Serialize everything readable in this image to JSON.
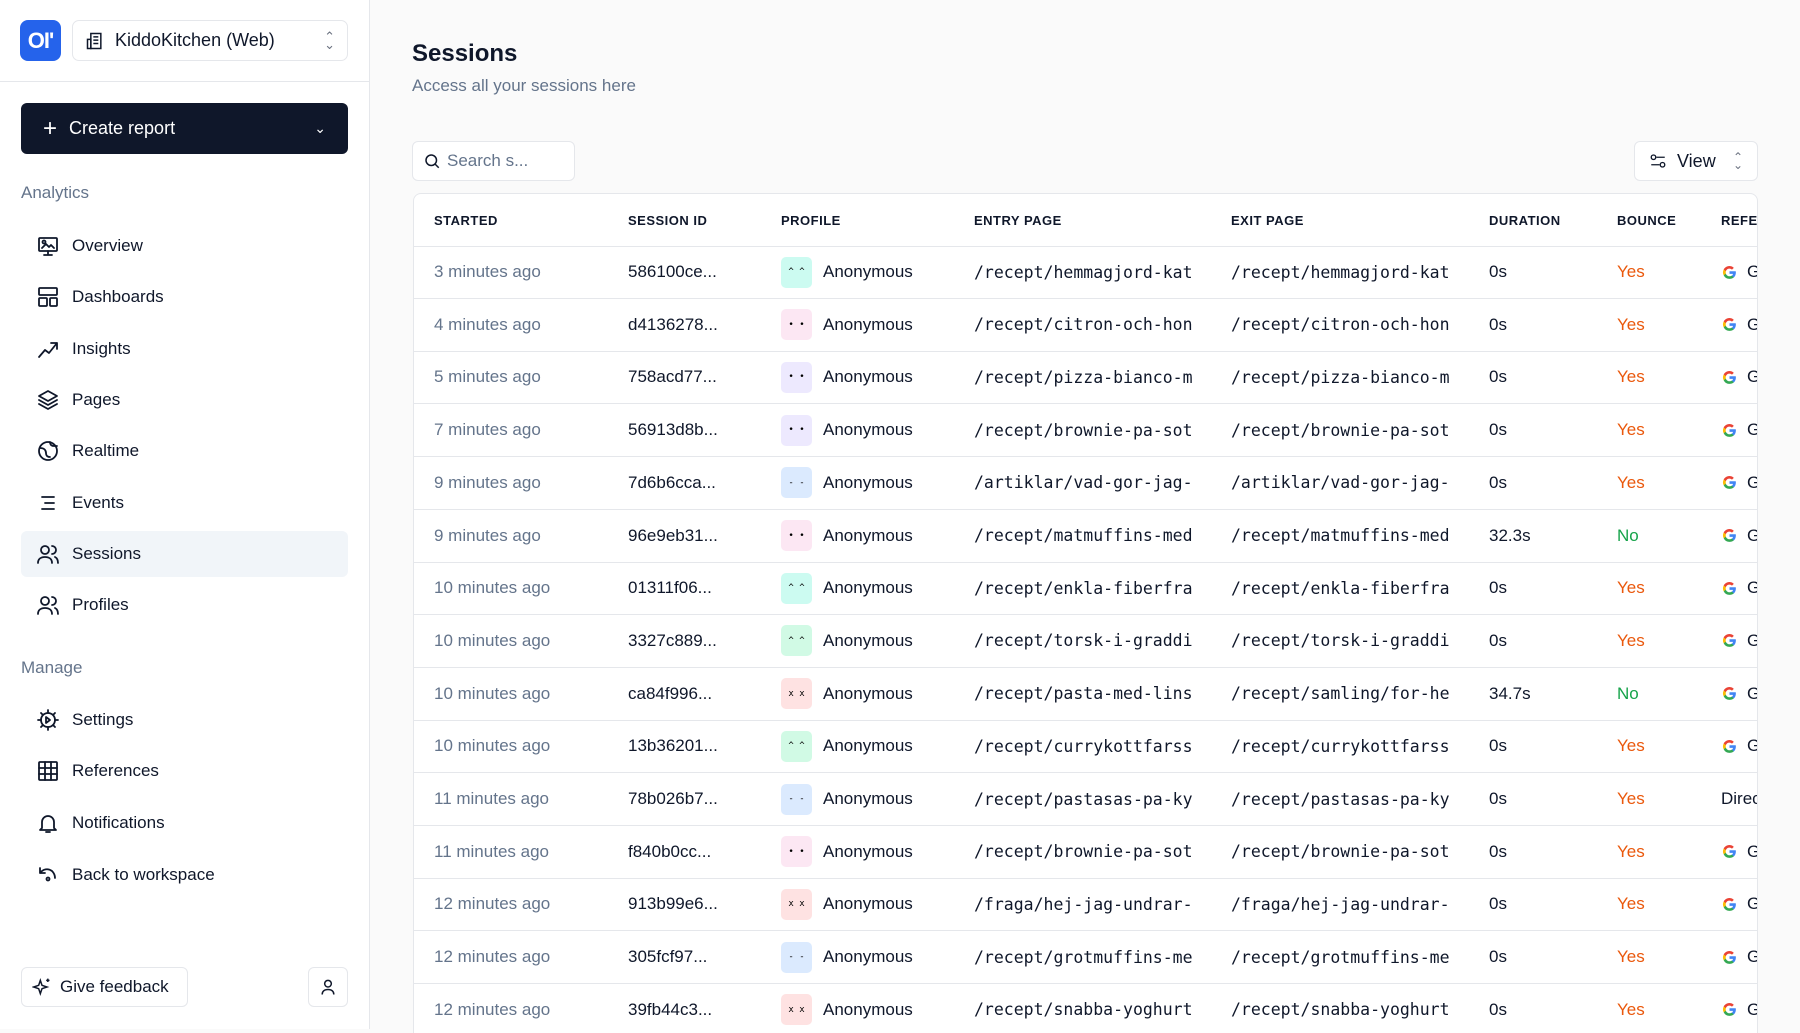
{
  "sidebar": {
    "logo": "OP",
    "project": "KiddoKitchen (Web)",
    "create_report": "Create report",
    "analytics_label": "Analytics",
    "analytics_items": [
      {
        "label": "Overview",
        "icon": "monitor-image"
      },
      {
        "label": "Dashboards",
        "icon": "layout"
      },
      {
        "label": "Insights",
        "icon": "trend-line"
      },
      {
        "label": "Pages",
        "icon": "layers"
      },
      {
        "label": "Realtime",
        "icon": "globe"
      },
      {
        "label": "Events",
        "icon": "list"
      },
      {
        "label": "Sessions",
        "icon": "users",
        "active": true
      },
      {
        "label": "Profiles",
        "icon": "users"
      }
    ],
    "manage_label": "Manage",
    "manage_items": [
      {
        "label": "Settings",
        "icon": "gear"
      },
      {
        "label": "References",
        "icon": "grid"
      },
      {
        "label": "Notifications",
        "icon": "bell"
      },
      {
        "label": "Back to workspace",
        "icon": "undo"
      }
    ],
    "feedback": "Give feedback"
  },
  "main": {
    "title": "Sessions",
    "subtitle": "Access all your sessions here",
    "search_placeholder": "Search s...",
    "view_label": "View",
    "columns": [
      "STARTED",
      "SESSION ID",
      "PROFILE",
      "ENTRY PAGE",
      "EXIT PAGE",
      "DURATION",
      "BOUNCE",
      "REFERRER"
    ],
    "rows": [
      {
        "started": "3 minutes ago",
        "id": "586100ce...",
        "profile": "Anonymous",
        "avatar_color": "#ccfbf1",
        "face": "^ ^",
        "entry": "/recept/hemmagjord-kat",
        "exit": "/recept/hemmagjord-kat",
        "duration": "0s",
        "bounce": "Yes",
        "referrer": "Google",
        "ref_icon": "google"
      },
      {
        "started": "4 minutes ago",
        "id": "d4136278...",
        "profile": "Anonymous",
        "avatar_color": "#fce7f3",
        "face": "• •",
        "entry": "/recept/citron-och-hon",
        "exit": "/recept/citron-och-hon",
        "duration": "0s",
        "bounce": "Yes",
        "referrer": "Google",
        "ref_icon": "google"
      },
      {
        "started": "5 minutes ago",
        "id": "758acd77...",
        "profile": "Anonymous",
        "avatar_color": "#ede9fe",
        "face": "• •",
        "entry": "/recept/pizza-bianco-m",
        "exit": "/recept/pizza-bianco-m",
        "duration": "0s",
        "bounce": "Yes",
        "referrer": "Google",
        "ref_icon": "google"
      },
      {
        "started": "7 minutes ago",
        "id": "56913d8b...",
        "profile": "Anonymous",
        "avatar_color": "#ede9fe",
        "face": "• •",
        "entry": "/recept/brownie-pa-sot",
        "exit": "/recept/brownie-pa-sot",
        "duration": "0s",
        "bounce": "Yes",
        "referrer": "Google",
        "ref_icon": "google"
      },
      {
        "started": "9 minutes ago",
        "id": "7d6b6cca...",
        "profile": "Anonymous",
        "avatar_color": "#dbeafe",
        "face": "- -",
        "entry": "/artiklar/vad-gor-jag-",
        "exit": "/artiklar/vad-gor-jag-",
        "duration": "0s",
        "bounce": "Yes",
        "referrer": "Google",
        "ref_icon": "google"
      },
      {
        "started": "9 minutes ago",
        "id": "96e9eb31...",
        "profile": "Anonymous",
        "avatar_color": "#fce7f3",
        "face": "• •",
        "entry": "/recept/matmuffins-med",
        "exit": "/recept/matmuffins-med",
        "duration": "32.3s",
        "bounce": "No",
        "referrer": "Google",
        "ref_icon": "google"
      },
      {
        "started": "10 minutes ago",
        "id": "01311f06...",
        "profile": "Anonymous",
        "avatar_color": "#ccfbf1",
        "face": "^ ^",
        "entry": "/recept/enkla-fiberfra",
        "exit": "/recept/enkla-fiberfra",
        "duration": "0s",
        "bounce": "Yes",
        "referrer": "Google",
        "ref_icon": "google"
      },
      {
        "started": "10 minutes ago",
        "id": "3327c889...",
        "profile": "Anonymous",
        "avatar_color": "#d1fae5",
        "face": "^ ^",
        "entry": "/recept/torsk-i-graddi",
        "exit": "/recept/torsk-i-graddi",
        "duration": "0s",
        "bounce": "Yes",
        "referrer": "Google",
        "ref_icon": "google"
      },
      {
        "started": "10 minutes ago",
        "id": "ca84f996...",
        "profile": "Anonymous",
        "avatar_color": "#fee2e2",
        "face": "x x",
        "entry": "/recept/pasta-med-lins",
        "exit": "/recept/samling/for-he",
        "duration": "34.7s",
        "bounce": "No",
        "referrer": "Google",
        "ref_icon": "google"
      },
      {
        "started": "10 minutes ago",
        "id": "13b36201...",
        "profile": "Anonymous",
        "avatar_color": "#d1fae5",
        "face": "^ ^",
        "entry": "/recept/currykottfarss",
        "exit": "/recept/currykottfarss",
        "duration": "0s",
        "bounce": "Yes",
        "referrer": "Google",
        "ref_icon": "google"
      },
      {
        "started": "11 minutes ago",
        "id": "78b026b7...",
        "profile": "Anonymous",
        "avatar_color": "#dbeafe",
        "face": "- -",
        "entry": "/recept/pastasas-pa-ky",
        "exit": "/recept/pastasas-pa-ky",
        "duration": "0s",
        "bounce": "Yes",
        "referrer": "Direct",
        "ref_icon": ""
      },
      {
        "started": "11 minutes ago",
        "id": "f840b0cc...",
        "profile": "Anonymous",
        "avatar_color": "#fce7f3",
        "face": "• •",
        "entry": "/recept/brownie-pa-sot",
        "exit": "/recept/brownie-pa-sot",
        "duration": "0s",
        "bounce": "Yes",
        "referrer": "Google",
        "ref_icon": "google"
      },
      {
        "started": "12 minutes ago",
        "id": "913b99e6...",
        "profile": "Anonymous",
        "avatar_color": "#fee2e2",
        "face": "x x",
        "entry": "/fraga/hej-jag-undrar-",
        "exit": "/fraga/hej-jag-undrar-",
        "duration": "0s",
        "bounce": "Yes",
        "referrer": "Google",
        "ref_icon": "google"
      },
      {
        "started": "12 minutes ago",
        "id": "305fcf97...",
        "profile": "Anonymous",
        "avatar_color": "#dbeafe",
        "face": "- -",
        "entry": "/recept/grotmuffins-me",
        "exit": "/recept/grotmuffins-me",
        "duration": "0s",
        "bounce": "Yes",
        "referrer": "Google",
        "ref_icon": "google"
      },
      {
        "started": "12 minutes ago",
        "id": "39fb44c3...",
        "profile": "Anonymous",
        "avatar_color": "#fee2e2",
        "face": "x x",
        "entry": "/recept/snabba-yoghurt",
        "exit": "/recept/snabba-yoghurt",
        "duration": "0s",
        "bounce": "Yes",
        "referrer": "Google",
        "ref_icon": "google"
      }
    ]
  },
  "colors": {
    "accent": "#2563eb",
    "primary_button": "#0f172a",
    "bounce_yes": "#ea580c",
    "bounce_no": "#16a34a"
  }
}
